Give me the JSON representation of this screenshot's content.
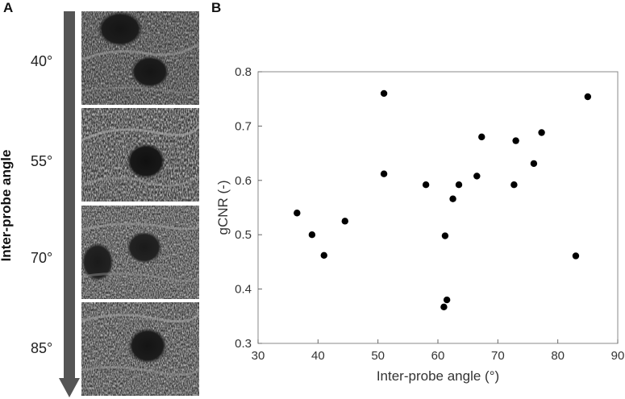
{
  "panel_a": {
    "label": "A",
    "axis_label": "Inter-probe angle",
    "angles": [
      "40°",
      "55°",
      "70°",
      "85°"
    ],
    "arrow_color": "#555555"
  },
  "panel_b": {
    "label": "B"
  },
  "chart_data": {
    "type": "scatter",
    "title": "",
    "xlabel": "Inter-probe angle (°)",
    "ylabel": "gCNR (-)",
    "xlim": [
      30,
      90
    ],
    "ylim": [
      0.3,
      0.8
    ],
    "xticks": [
      "30",
      "40",
      "50",
      "60",
      "70",
      "80",
      "90"
    ],
    "yticks": [
      "0.3",
      "0.4",
      "0.5",
      "0.6",
      "0.7",
      "0.8"
    ],
    "grid": false,
    "marker_color": "#000000",
    "points": [
      {
        "x": 36.5,
        "y": 0.54
      },
      {
        "x": 39.0,
        "y": 0.5
      },
      {
        "x": 41.0,
        "y": 0.462
      },
      {
        "x": 44.5,
        "y": 0.525
      },
      {
        "x": 51.0,
        "y": 0.76
      },
      {
        "x": 51.0,
        "y": 0.612
      },
      {
        "x": 58.0,
        "y": 0.592
      },
      {
        "x": 61.0,
        "y": 0.367
      },
      {
        "x": 61.2,
        "y": 0.498
      },
      {
        "x": 61.5,
        "y": 0.38
      },
      {
        "x": 62.5,
        "y": 0.566
      },
      {
        "x": 63.5,
        "y": 0.592
      },
      {
        "x": 66.5,
        "y": 0.608
      },
      {
        "x": 67.3,
        "y": 0.68
      },
      {
        "x": 72.7,
        "y": 0.592
      },
      {
        "x": 73.0,
        "y": 0.673
      },
      {
        "x": 76.0,
        "y": 0.631
      },
      {
        "x": 77.3,
        "y": 0.688
      },
      {
        "x": 83.0,
        "y": 0.461
      },
      {
        "x": 85.0,
        "y": 0.754
      }
    ]
  }
}
